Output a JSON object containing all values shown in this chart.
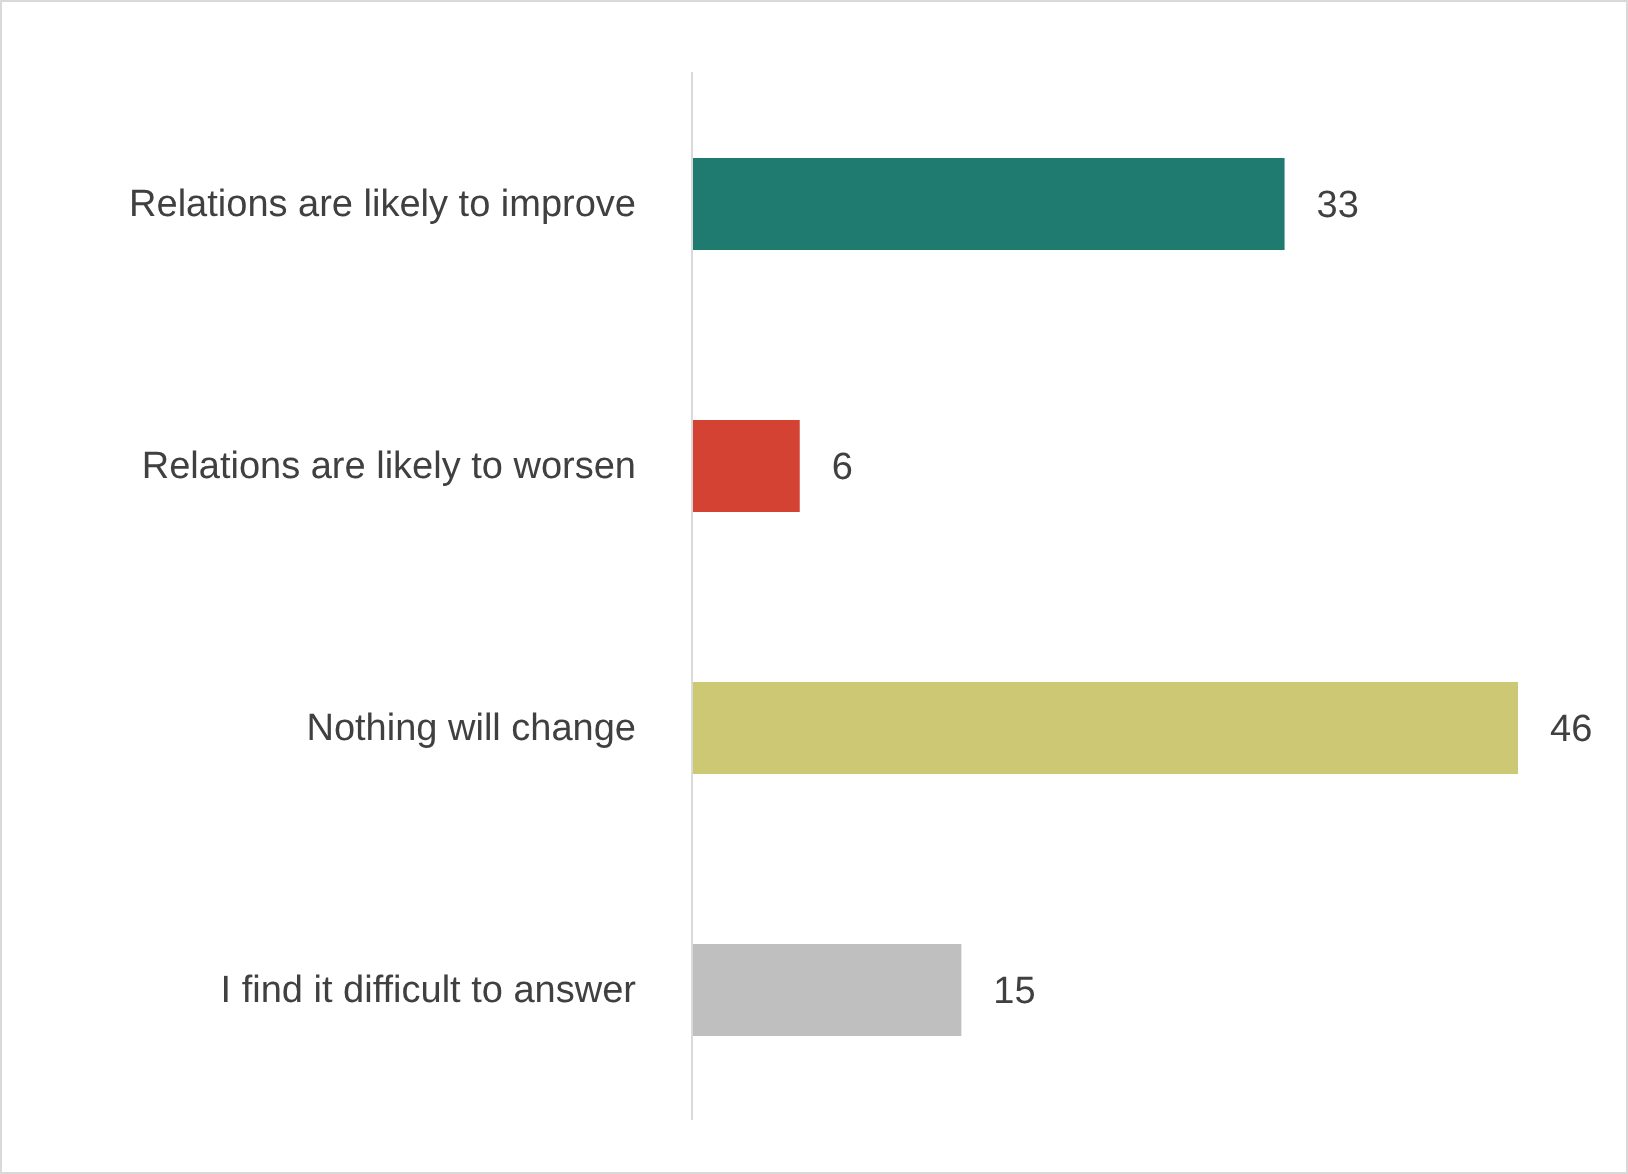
{
  "chart_data": {
    "type": "bar",
    "orientation": "horizontal",
    "categories": [
      "Relations are likely to improve",
      "Relations are likely to worsen",
      "Nothing will change",
      "I find it difficult to answer"
    ],
    "values": [
      33,
      6,
      46,
      15
    ],
    "colors": [
      "#1f7a70",
      "#d34232",
      "#cdc873",
      "#bfbfbf"
    ],
    "data_labels": true,
    "grid": false,
    "legend": false
  }
}
